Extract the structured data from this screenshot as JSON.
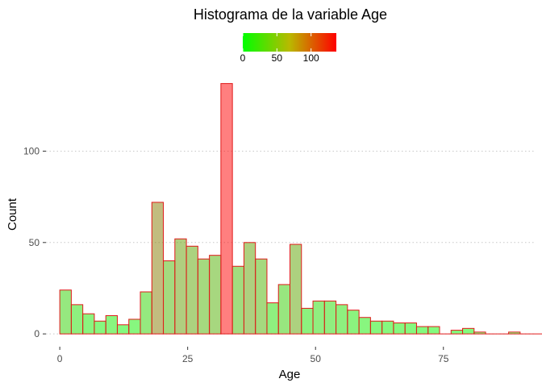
{
  "chart_data": {
    "type": "bar",
    "title": "Histograma de la variable Age",
    "xlabel": "Age",
    "ylabel": "Count",
    "xlim": [
      -2.7,
      92.7
    ],
    "ylim": [
      -7,
      143
    ],
    "x_ticks": [
      0,
      25,
      50,
      75
    ],
    "y_ticks": [
      0,
      50,
      100
    ],
    "grid": "horizontal dotted",
    "bin_start": 0,
    "bin_width": 2.25,
    "counts": [
      24,
      16,
      11,
      7,
      10,
      5,
      8,
      23,
      72,
      40,
      52,
      48,
      41,
      43,
      137,
      37,
      50,
      41,
      17,
      27,
      49,
      14,
      18,
      18,
      16,
      13,
      9,
      7,
      7,
      6,
      6,
      4,
      4,
      0,
      2,
      3,
      1,
      0,
      0,
      1,
      0,
      0,
      0,
      0,
      0,
      0
    ],
    "bar_outline_color": "#e01a1a",
    "fill_alpha": 0.5,
    "fill_gradient": [
      "#00ff00",
      "#ff0000"
    ],
    "legend": {
      "placement": "top",
      "ticks": [
        0,
        50,
        100
      ],
      "min": 0,
      "max": 137
    }
  }
}
